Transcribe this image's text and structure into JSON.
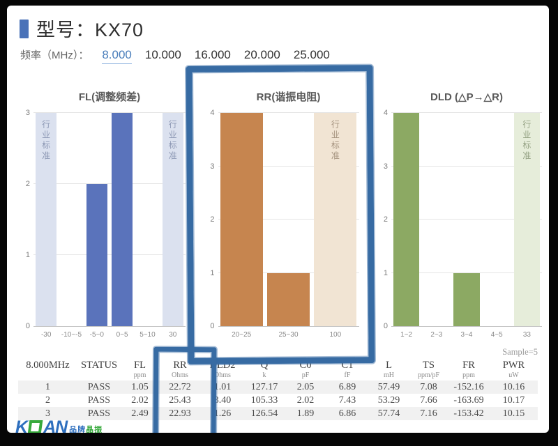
{
  "header": {
    "title": "型号：KX70"
  },
  "frequency": {
    "label": "频率（MHz）：",
    "options": [
      "8.000",
      "10.000",
      "16.000",
      "20.000",
      "25.000"
    ],
    "selected": "8.000"
  },
  "colors": {
    "accent": "#4a72b8",
    "link_blue": "#4a7ebb",
    "brush_highlight": "#376ba3",
    "fl_bar": "#5a73bb",
    "fl_standard": "#dbe1ef",
    "rr_bar": "#c6854f",
    "rr_standard": "#f1e4d3",
    "dld_bar": "#8ca963",
    "dld_standard": "#e6edda"
  },
  "chart_data": [
    {
      "type": "bar",
      "title": "FL(调整频差)",
      "categories": [
        "-30",
        "-10~-5",
        "-5~0",
        "0~5",
        "5~10",
        "30"
      ],
      "values": [
        3,
        0,
        2,
        3,
        0,
        3
      ],
      "standard_flags": [
        true,
        false,
        false,
        false,
        false,
        true
      ],
      "standard_label": "行业标准",
      "ylim": [
        0,
        3
      ],
      "yticks": [
        0,
        1,
        2,
        3
      ],
      "bar_color": "#5a73bb",
      "standard_color": "#dbe1ef",
      "standard_text_color": "#8e99b5",
      "legend_position": "none",
      "grid": true
    },
    {
      "type": "bar",
      "title": "RR(谐振电阻)",
      "categories": [
        "20~25",
        "25~30",
        "100"
      ],
      "values": [
        4,
        1,
        4
      ],
      "standard_flags": [
        false,
        false,
        true
      ],
      "standard_label": "行业标准",
      "ylim": [
        0,
        4
      ],
      "yticks": [
        0,
        1,
        2,
        3,
        4
      ],
      "bar_color": "#c6854f",
      "standard_color": "#f1e4d3",
      "standard_text_color": "#a5937f",
      "legend_position": "none",
      "grid": true,
      "highlighted": true
    },
    {
      "type": "bar",
      "title": "DLD (△P→△R)",
      "categories": [
        "1~2",
        "2~3",
        "3~4",
        "4~5",
        "33"
      ],
      "values": [
        4,
        0,
        1,
        0,
        4
      ],
      "standard_flags": [
        false,
        false,
        false,
        false,
        true
      ],
      "standard_label": "行业标准",
      "ylim": [
        0,
        4
      ],
      "yticks": [
        0,
        1,
        2,
        3,
        4
      ],
      "bar_color": "#8ca963",
      "standard_color": "#e6edda",
      "standard_text_color": "#95a284",
      "legend_position": "none",
      "grid": true
    }
  ],
  "table": {
    "sample_note": "Sample=5",
    "columns": [
      {
        "label": "8.000MHz",
        "unit": ""
      },
      {
        "label": "STATUS",
        "unit": ""
      },
      {
        "label": "FL",
        "unit": "ppm"
      },
      {
        "label": "RR",
        "unit": "Ohms",
        "highlighted": true
      },
      {
        "label": "DLD2",
        "unit": "Ohms"
      },
      {
        "label": "Q",
        "unit": "k"
      },
      {
        "label": "C0",
        "unit": "pF"
      },
      {
        "label": "C1",
        "unit": "fF"
      },
      {
        "label": "L",
        "unit": "mH"
      },
      {
        "label": "TS",
        "unit": "ppm/pF"
      },
      {
        "label": "FR",
        "unit": "ppm"
      },
      {
        "label": "PWR",
        "unit": "uW"
      }
    ],
    "rows": [
      [
        "1",
        "PASS",
        "1.05",
        "22.72",
        "1.01",
        "127.17",
        "2.05",
        "6.89",
        "57.49",
        "7.08",
        "-152.16",
        "10.16"
      ],
      [
        "2",
        "PASS",
        "2.02",
        "25.43",
        "3.40",
        "105.33",
        "2.02",
        "7.43",
        "53.29",
        "7.66",
        "-163.69",
        "10.17"
      ],
      [
        "3",
        "PASS",
        "2.49",
        "22.93",
        "1.26",
        "126.54",
        "1.89",
        "6.86",
        "57.74",
        "7.16",
        "-153.42",
        "10.15"
      ]
    ]
  },
  "logo": {
    "part1": "K",
    "part2": "AN",
    "tagline_a": "品牌",
    "tagline_b": "晶振"
  }
}
